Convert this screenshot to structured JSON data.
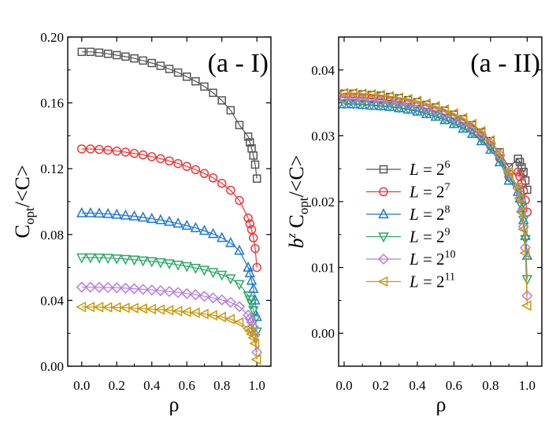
{
  "chart_data": [
    {
      "type": "line",
      "panel_label": "(a - I)",
      "xlabel": "ρ",
      "ylabel_main": "C",
      "ylabel_sub": "opt",
      "ylabel_tail": "/<C>",
      "xlim": [
        -0.08,
        1.08
      ],
      "ylim": [
        0.0,
        0.2
      ],
      "xticks": [
        0.0,
        0.2,
        0.4,
        0.6,
        0.8,
        1.0
      ],
      "xtick_labels": [
        "0.0",
        "0.2",
        "0.4",
        "0.6",
        "0.8",
        "1.0"
      ],
      "yticks": [
        0.0,
        0.04,
        0.08,
        0.12,
        0.16,
        0.2
      ],
      "ytick_labels": [
        "0.00",
        "0.04",
        "0.08",
        "0.12",
        "0.16",
        "0.20"
      ],
      "grid": false,
      "legend": "none",
      "series": [
        {
          "color": "#555555",
          "marker": "square",
          "x": [
            0.0,
            0.05,
            0.1,
            0.15,
            0.2,
            0.25,
            0.3,
            0.35,
            0.4,
            0.45,
            0.5,
            0.55,
            0.6,
            0.65,
            0.7,
            0.75,
            0.8,
            0.85,
            0.9,
            0.95,
            0.96,
            0.97,
            0.98,
            0.99,
            1.0
          ],
          "y": [
            0.191,
            0.191,
            0.1905,
            0.1898,
            0.189,
            0.1881,
            0.187,
            0.1857,
            0.1842,
            0.1825,
            0.1806,
            0.1784,
            0.1759,
            0.1731,
            0.1699,
            0.1661,
            0.1615,
            0.1555,
            0.1465,
            0.1395,
            0.136,
            0.1323,
            0.128,
            0.1225,
            0.114
          ]
        },
        {
          "color": "#e8393a",
          "marker": "circle",
          "x": [
            0.0,
            0.05,
            0.1,
            0.15,
            0.2,
            0.25,
            0.3,
            0.35,
            0.4,
            0.45,
            0.5,
            0.55,
            0.6,
            0.65,
            0.7,
            0.75,
            0.8,
            0.85,
            0.9,
            0.95,
            0.96,
            0.97,
            0.98,
            0.99,
            1.0
          ],
          "y": [
            0.132,
            0.132,
            0.1317,
            0.1313,
            0.1307,
            0.1301,
            0.1293,
            0.1284,
            0.1273,
            0.1261,
            0.1247,
            0.1231,
            0.1214,
            0.1194,
            0.1171,
            0.1144,
            0.1111,
            0.1069,
            0.1007,
            0.09,
            0.0865,
            0.083,
            0.078,
            0.0715,
            0.06
          ]
        },
        {
          "color": "#1f77d4",
          "marker": "triangle-up",
          "x": [
            0.0,
            0.05,
            0.1,
            0.15,
            0.2,
            0.25,
            0.3,
            0.35,
            0.4,
            0.45,
            0.5,
            0.55,
            0.6,
            0.65,
            0.7,
            0.75,
            0.8,
            0.85,
            0.9,
            0.95,
            0.96,
            0.97,
            0.98,
            0.99,
            1.0
          ],
          "y": [
            0.093,
            0.093,
            0.0928,
            0.0925,
            0.0921,
            0.0916,
            0.0911,
            0.0904,
            0.0896,
            0.0888,
            0.0878,
            0.0867,
            0.0854,
            0.084,
            0.0823,
            0.0804,
            0.078,
            0.0749,
            0.0702,
            0.06,
            0.0565,
            0.052,
            0.047,
            0.04,
            0.03
          ]
        },
        {
          "color": "#2ea866",
          "marker": "triangle-down",
          "x": [
            0.0,
            0.05,
            0.1,
            0.15,
            0.2,
            0.25,
            0.3,
            0.35,
            0.4,
            0.45,
            0.5,
            0.55,
            0.6,
            0.65,
            0.7,
            0.75,
            0.8,
            0.85,
            0.9,
            0.95,
            0.96,
            0.97,
            0.98,
            0.99,
            1.0
          ],
          "y": [
            0.066,
            0.066,
            0.0659,
            0.0657,
            0.0654,
            0.0651,
            0.0647,
            0.0642,
            0.0637,
            0.0631,
            0.0624,
            0.0616,
            0.0607,
            0.0597,
            0.0585,
            0.0571,
            0.0555,
            0.0533,
            0.0498,
            0.043,
            0.0405,
            0.038,
            0.034,
            0.0285,
            0.021
          ]
        },
        {
          "color": "#b57ee0",
          "marker": "diamond",
          "x": [
            0.0,
            0.05,
            0.1,
            0.15,
            0.2,
            0.25,
            0.3,
            0.35,
            0.4,
            0.45,
            0.5,
            0.55,
            0.6,
            0.65,
            0.7,
            0.75,
            0.8,
            0.85,
            0.9,
            0.95,
            0.96,
            0.97,
            0.98,
            0.99,
            1.0
          ],
          "y": [
            0.048,
            0.048,
            0.0479,
            0.0478,
            0.0476,
            0.0474,
            0.0471,
            0.0467,
            0.0463,
            0.0459,
            0.0454,
            0.0448,
            0.0441,
            0.0434,
            0.0425,
            0.0415,
            0.0403,
            0.0388,
            0.0362,
            0.031,
            0.029,
            0.0268,
            0.024,
            0.019,
            0.0085
          ]
        },
        {
          "color": "#c9970a",
          "marker": "triangle-left",
          "x": [
            0.0,
            0.05,
            0.1,
            0.15,
            0.2,
            0.25,
            0.3,
            0.35,
            0.4,
            0.45,
            0.5,
            0.55,
            0.6,
            0.65,
            0.7,
            0.75,
            0.8,
            0.85,
            0.9,
            0.95,
            0.96,
            0.97,
            0.98,
            0.99,
            1.0
          ],
          "y": [
            0.036,
            0.036,
            0.0359,
            0.0358,
            0.0357,
            0.0355,
            0.0353,
            0.035,
            0.0347,
            0.0344,
            0.034,
            0.0335,
            0.033,
            0.0324,
            0.0317,
            0.0309,
            0.0299,
            0.0286,
            0.0266,
            0.023,
            0.0215,
            0.0195,
            0.0172,
            0.0138,
            0.004
          ]
        }
      ]
    },
    {
      "type": "line",
      "panel_label": "(a - II)",
      "xlabel": "ρ",
      "ylabel_prefix": "b",
      "ylabel_sup": "z",
      "ylabel_main": " C",
      "ylabel_sub": "opt",
      "ylabel_tail": "/<C>",
      "xlim": [
        -0.03,
        1.08
      ],
      "ylim": [
        -0.005,
        0.045
      ],
      "xticks": [
        0.0,
        0.2,
        0.4,
        0.6,
        0.8,
        1.0
      ],
      "xtick_labels": [
        "0.0",
        "0.2",
        "0.4",
        "0.6",
        "0.8",
        "1.0"
      ],
      "yticks": [
        0.0,
        0.01,
        0.02,
        0.03,
        0.04
      ],
      "ytick_labels": [
        "0.00",
        "0.01",
        "0.02",
        "0.03",
        "0.04"
      ],
      "grid": false,
      "legend": "center-left",
      "series": [
        {
          "name_base": "L = 2",
          "name_exp": "6",
          "color": "#555555",
          "marker": "square",
          "x": [
            0.0,
            0.05,
            0.1,
            0.15,
            0.2,
            0.25,
            0.3,
            0.35,
            0.4,
            0.45,
            0.5,
            0.55,
            0.6,
            0.65,
            0.7,
            0.75,
            0.8,
            0.85,
            0.9,
            0.95,
            0.96,
            0.97,
            0.98,
            0.99,
            1.0
          ],
          "y": [
            0.0364,
            0.0364,
            0.0363,
            0.0362,
            0.0361,
            0.0359,
            0.0357,
            0.0354,
            0.0351,
            0.0347,
            0.0343,
            0.0338,
            0.0332,
            0.0325,
            0.0316,
            0.0305,
            0.0292,
            0.0275,
            0.0252,
            0.0265,
            0.026,
            0.0252,
            0.0245,
            0.0232,
            0.0218
          ]
        },
        {
          "name_base": "L = 2",
          "name_exp": "7",
          "color": "#e8393a",
          "marker": "circle",
          "x": [
            0.0,
            0.05,
            0.1,
            0.15,
            0.2,
            0.25,
            0.3,
            0.35,
            0.4,
            0.45,
            0.5,
            0.55,
            0.6,
            0.65,
            0.7,
            0.75,
            0.8,
            0.85,
            0.9,
            0.95,
            0.96,
            0.97,
            0.98,
            0.99,
            1.0
          ],
          "y": [
            0.0358,
            0.0358,
            0.0357,
            0.0356,
            0.0355,
            0.0353,
            0.0351,
            0.0349,
            0.0345,
            0.0342,
            0.0337,
            0.0332,
            0.0326,
            0.0319,
            0.031,
            0.0299,
            0.0285,
            0.0266,
            0.0238,
            0.0245,
            0.0238,
            0.0228,
            0.0216,
            0.0202,
            0.0184
          ]
        },
        {
          "name_base": "L = 2",
          "name_exp": "8",
          "color": "#1f77d4",
          "marker": "triangle-up",
          "x": [
            0.0,
            0.05,
            0.1,
            0.15,
            0.2,
            0.25,
            0.3,
            0.35,
            0.4,
            0.45,
            0.5,
            0.55,
            0.6,
            0.65,
            0.7,
            0.75,
            0.8,
            0.85,
            0.9,
            0.95,
            0.96,
            0.97,
            0.98,
            0.99,
            1.0
          ],
          "y": [
            0.0348,
            0.0348,
            0.0347,
            0.0346,
            0.0345,
            0.0344,
            0.0342,
            0.034,
            0.0337,
            0.0333,
            0.0329,
            0.0324,
            0.0318,
            0.0311,
            0.0303,
            0.0292,
            0.0279,
            0.026,
            0.0232,
            0.0215,
            0.0205,
            0.019,
            0.0172,
            0.0148,
            0.0118
          ]
        },
        {
          "name_base": "L = 2",
          "name_exp": "9",
          "color": "#2ea866",
          "marker": "triangle-down",
          "x": [
            0.0,
            0.05,
            0.1,
            0.15,
            0.2,
            0.25,
            0.3,
            0.35,
            0.4,
            0.45,
            0.5,
            0.55,
            0.6,
            0.65,
            0.7,
            0.75,
            0.8,
            0.85,
            0.9,
            0.95,
            0.96,
            0.97,
            0.98,
            0.99,
            1.0
          ],
          "y": [
            0.0349,
            0.0349,
            0.0348,
            0.0347,
            0.0346,
            0.0345,
            0.0343,
            0.0341,
            0.0338,
            0.0335,
            0.0331,
            0.0326,
            0.032,
            0.0313,
            0.0305,
            0.0295,
            0.0282,
            0.0264,
            0.0237,
            0.0222,
            0.021,
            0.0193,
            0.0172,
            0.0143,
            0.0082
          ]
        },
        {
          "name_base": "L = 2",
          "name_exp": "10",
          "color": "#b57ee0",
          "marker": "diamond",
          "x": [
            0.0,
            0.05,
            0.1,
            0.15,
            0.2,
            0.25,
            0.3,
            0.35,
            0.4,
            0.45,
            0.5,
            0.55,
            0.6,
            0.65,
            0.7,
            0.75,
            0.8,
            0.85,
            0.9,
            0.95,
            0.96,
            0.97,
            0.98,
            0.99,
            1.0
          ],
          "y": [
            0.0356,
            0.0356,
            0.0355,
            0.0354,
            0.0353,
            0.0352,
            0.035,
            0.0348,
            0.0345,
            0.0342,
            0.0338,
            0.0333,
            0.0327,
            0.032,
            0.0312,
            0.0302,
            0.0289,
            0.0271,
            0.0244,
            0.022,
            0.0205,
            0.0185,
            0.0162,
            0.013,
            0.0057
          ]
        },
        {
          "name_base": "L = 2",
          "name_exp": "11",
          "color": "#c9970a",
          "marker": "triangle-left",
          "x": [
            0.0,
            0.05,
            0.1,
            0.15,
            0.2,
            0.25,
            0.3,
            0.35,
            0.4,
            0.45,
            0.5,
            0.55,
            0.6,
            0.65,
            0.7,
            0.75,
            0.8,
            0.85,
            0.9,
            0.95,
            0.96,
            0.97,
            0.98,
            0.99,
            1.0
          ],
          "y": [
            0.0365,
            0.0365,
            0.0364,
            0.0363,
            0.0362,
            0.036,
            0.0358,
            0.0356,
            0.0353,
            0.0349,
            0.0345,
            0.034,
            0.0334,
            0.0327,
            0.0318,
            0.0307,
            0.0293,
            0.0274,
            0.0245,
            0.0222,
            0.0205,
            0.0184,
            0.0158,
            0.0122,
            0.0042
          ]
        }
      ]
    }
  ]
}
